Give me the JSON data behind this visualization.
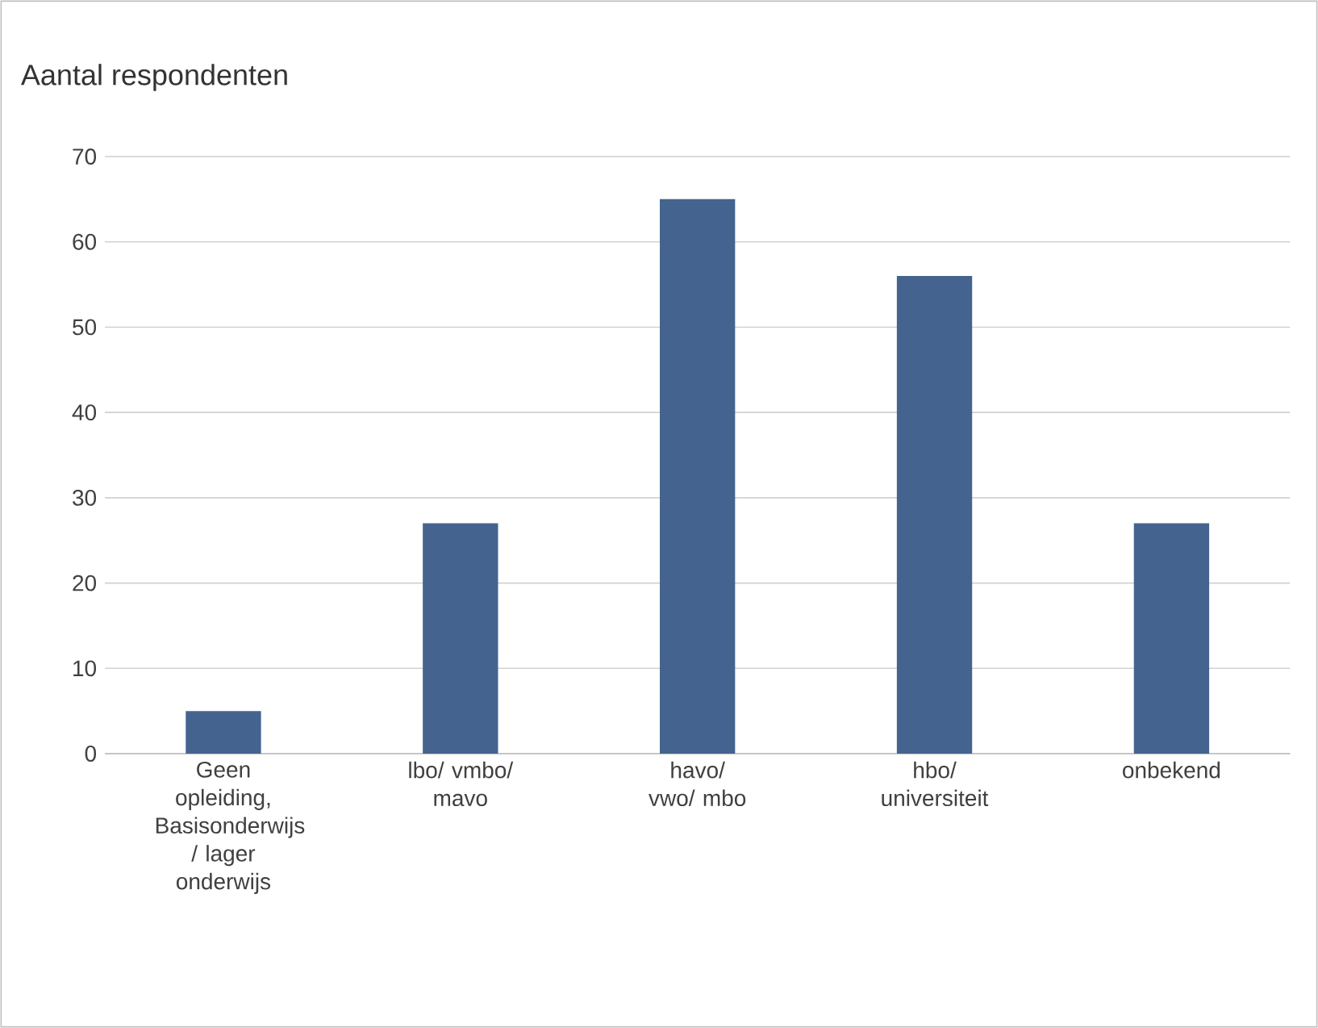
{
  "chart_data": {
    "type": "bar",
    "title": "Aantal respondenten",
    "categories": [
      "Geen opleiding, Basisonderwijs / lager onderwijs",
      "lbo/ vmbo/ mavo",
      "havo/ vwo/ mbo",
      "hbo/ universiteit",
      "onbekend"
    ],
    "values": [
      5,
      27,
      65,
      56,
      27
    ],
    "color": "#44648f",
    "ylim": [
      0,
      70
    ],
    "yticks": [
      0,
      10,
      20,
      30,
      40,
      50,
      60,
      70
    ],
    "grid": "y"
  }
}
